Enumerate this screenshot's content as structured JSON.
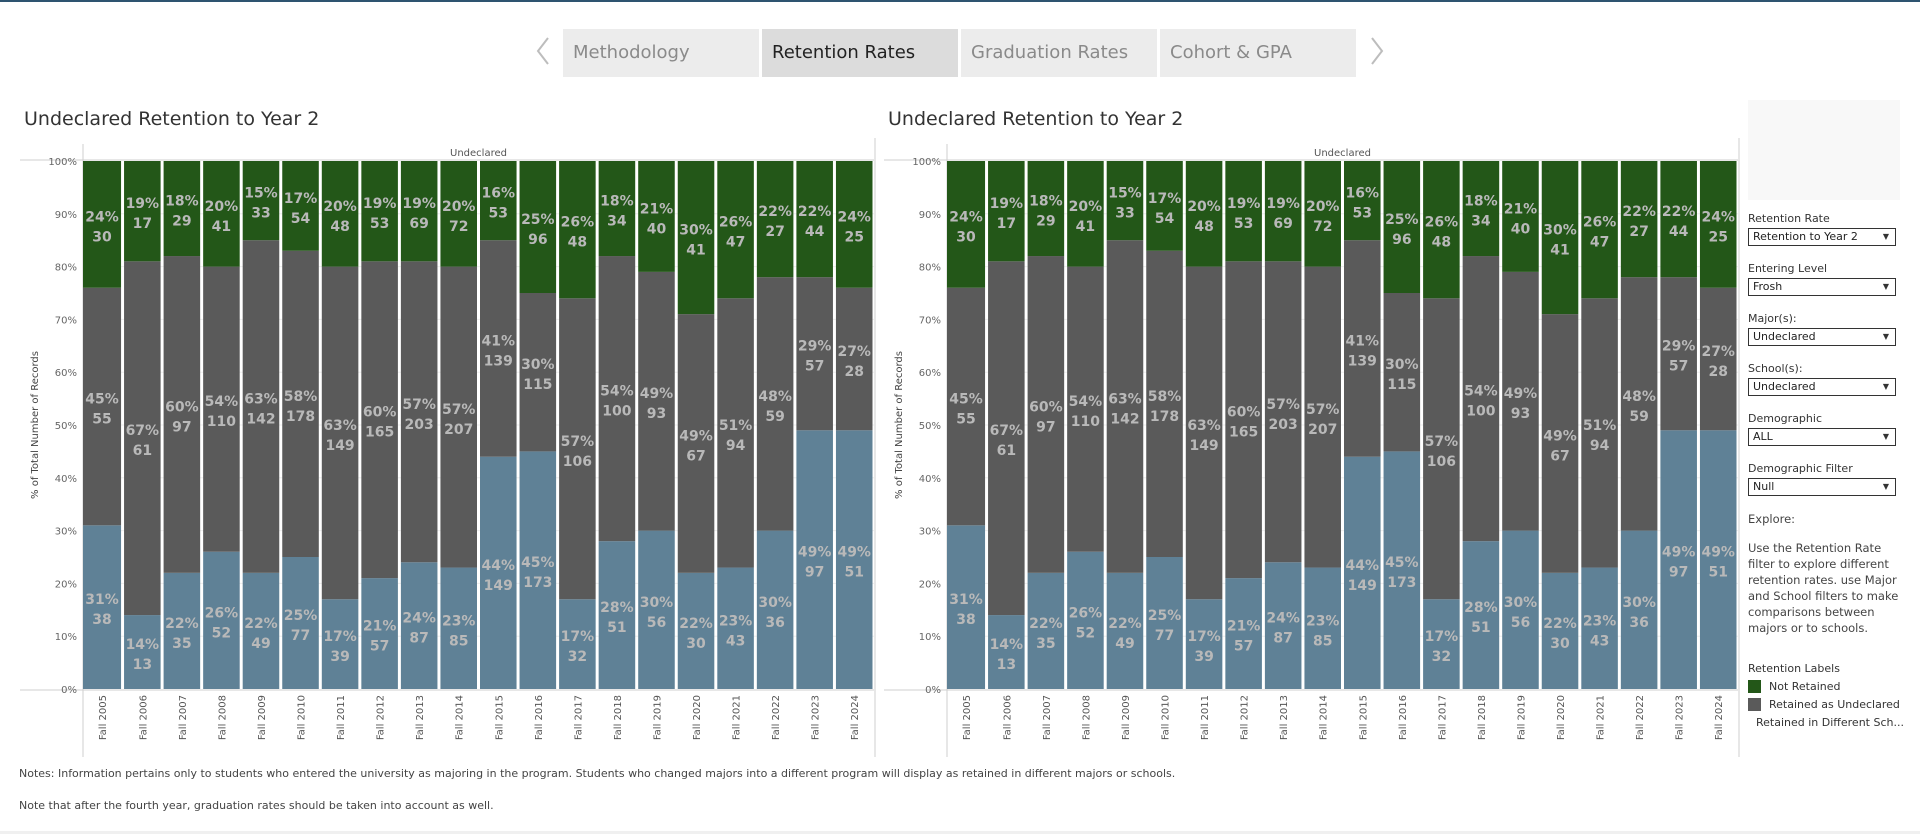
{
  "tabs": {
    "prev_icon": "chevron-left-icon",
    "next_icon": "chevron-right-icon",
    "items": [
      {
        "label": "Methodology",
        "active": false
      },
      {
        "label": "Retention Rates",
        "active": true
      },
      {
        "label": "Graduation Rates",
        "active": false
      },
      {
        "label": "Cohort & GPA",
        "active": false
      }
    ]
  },
  "colors": {
    "not_retained": "#235718",
    "retained_undeclared": "#5a5a5a",
    "retained_different": "#5f8196",
    "label_text": "#b9b9b9",
    "top_bar": "#2e5470"
  },
  "charts": [
    {
      "title": "Undeclared Retention to Year 2",
      "header": "Undeclared",
      "ylabel": "% of Total Number of Records"
    },
    {
      "title": "Undeclared Retention to Year 2",
      "header": "Undeclared",
      "ylabel": "% of Total Number of Records"
    }
  ],
  "chart_data": {
    "type": "bar",
    "stacked": "100%",
    "title": "Undeclared Retention to Year 2",
    "column_header": "Undeclared",
    "xlabel": "",
    "ylabel": "% of Total Number of Records",
    "ylim": [
      0,
      100
    ],
    "yticks": [
      "0%",
      "10%",
      "20%",
      "30%",
      "40%",
      "50%",
      "60%",
      "70%",
      "80%",
      "90%",
      "100%"
    ],
    "grid": true,
    "categories": [
      "Fall 2005",
      "Fall 2006",
      "Fall 2007",
      "Fall 2008",
      "Fall 2009",
      "Fall 2010",
      "Fall 2011",
      "Fall 2012",
      "Fall 2013",
      "Fall 2014",
      "Fall 2015",
      "Fall 2016",
      "Fall 2017",
      "Fall 2018",
      "Fall 2019",
      "Fall 2020",
      "Fall 2021",
      "Fall 2022",
      "Fall 2023",
      "Fall 2024"
    ],
    "series": [
      {
        "name": "Retained in Different School",
        "color": "#5f8196",
        "pct": [
          31,
          14,
          22,
          26,
          22,
          25,
          17,
          21,
          24,
          23,
          44,
          45,
          17,
          28,
          30,
          22,
          23,
          30,
          49,
          49
        ],
        "counts": [
          38,
          13,
          35,
          52,
          49,
          77,
          39,
          57,
          87,
          85,
          149,
          173,
          32,
          51,
          56,
          30,
          43,
          36,
          97,
          51
        ]
      },
      {
        "name": "Retained as Undeclared",
        "color": "#5a5a5a",
        "pct": [
          45,
          67,
          60,
          54,
          63,
          58,
          63,
          60,
          57,
          57,
          41,
          30,
          57,
          54,
          49,
          49,
          51,
          48,
          29,
          27
        ],
        "counts": [
          55,
          61,
          97,
          110,
          142,
          178,
          149,
          165,
          203,
          207,
          139,
          115,
          106,
          100,
          93,
          67,
          94,
          59,
          57,
          28
        ]
      },
      {
        "name": "Not Retained",
        "color": "#235718",
        "pct": [
          24,
          19,
          18,
          20,
          15,
          17,
          20,
          19,
          19,
          20,
          16,
          25,
          26,
          18,
          21,
          30,
          26,
          22,
          22,
          24
        ],
        "counts": [
          30,
          17,
          29,
          41,
          33,
          54,
          48,
          53,
          69,
          72,
          53,
          96,
          48,
          34,
          40,
          41,
          47,
          27,
          44,
          25
        ]
      }
    ],
    "legend": "right"
  },
  "sidebar": {
    "filters": [
      {
        "label": "Retention Rate",
        "value": "Retention to Year 2"
      },
      {
        "label": "Entering Level",
        "value": "Frosh"
      },
      {
        "label": "Major(s):",
        "value": "Undeclared"
      },
      {
        "label": "School(s):",
        "value": "Undeclared"
      },
      {
        "label": "Demographic",
        "value": "ALL"
      },
      {
        "label": "Demographic Filter",
        "value": "Null"
      }
    ],
    "explore_title": "Explore:",
    "explore_text": "Use the Retention Rate filter to explore different retention rates. use Major and School filters to make comparisons between majors or to schools.",
    "legend_title": "Retention Labels",
    "legend": [
      {
        "label": "Not Retained",
        "color": "#235718"
      },
      {
        "label": "Retained as Undeclared",
        "color": "#5a5a5a"
      },
      {
        "label": "Retained in Different Sch...",
        "color": "#5f8196"
      }
    ]
  },
  "notes": [
    "Notes: Information pertains only to students who entered the university as majoring in the program. Students who changed majors into a different program will display as retained in different majors or schools.",
    "Note that after the fourth year, graduation rates should be taken into account as well."
  ]
}
